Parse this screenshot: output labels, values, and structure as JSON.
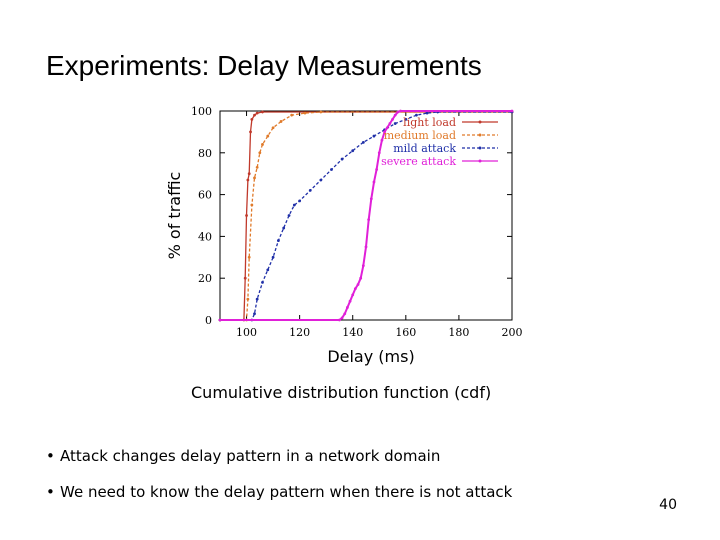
{
  "slide": {
    "title": "Experiments: Delay Measurements",
    "caption": "Cumulative distribution function (cdf)",
    "bullets": [
      "Attack changes delay pattern in a network domain",
      "We need to know the delay pattern when there is not attack"
    ],
    "page_number": "40"
  },
  "chart_data": {
    "type": "line",
    "title": "",
    "xlabel": "Delay (ms)",
    "ylabel": "% of traffic",
    "xlim": [
      90,
      200
    ],
    "ylim": [
      0,
      100
    ],
    "xticks": [
      "100",
      "120",
      "140",
      "160",
      "180",
      "200"
    ],
    "yticks": [
      "0",
      "20",
      "40",
      "60",
      "80",
      "100"
    ],
    "grid": false,
    "legend_position": "top-right",
    "series": [
      {
        "name": "light load",
        "color": "#c0392b",
        "style": "solid",
        "points": [
          [
            90,
            0
          ],
          [
            99,
            0
          ],
          [
            99.5,
            20
          ],
          [
            100,
            50
          ],
          [
            100.5,
            67
          ],
          [
            101,
            70
          ],
          [
            101.5,
            90
          ],
          [
            102,
            96
          ],
          [
            103,
            98
          ],
          [
            104,
            99
          ],
          [
            106,
            99.5
          ],
          [
            200,
            99.5
          ]
        ]
      },
      {
        "name": "medium load",
        "color": "#e07a2a",
        "style": "dashed",
        "points": [
          [
            90,
            0
          ],
          [
            100,
            0
          ],
          [
            100.5,
            10
          ],
          [
            101,
            30
          ],
          [
            102,
            55
          ],
          [
            103,
            68
          ],
          [
            104,
            73
          ],
          [
            105,
            80
          ],
          [
            106,
            84
          ],
          [
            108,
            88
          ],
          [
            110,
            92
          ],
          [
            113,
            95
          ],
          [
            117,
            98
          ],
          [
            122,
            99
          ],
          [
            128,
            99.5
          ],
          [
            200,
            99.5
          ]
        ]
      },
      {
        "name": "mild attack",
        "color": "#1f2fa8",
        "style": "dashed",
        "points": [
          [
            90,
            0
          ],
          [
            102,
            0
          ],
          [
            103,
            3
          ],
          [
            104,
            10
          ],
          [
            106,
            18
          ],
          [
            108,
            24
          ],
          [
            110,
            30
          ],
          [
            112,
            38
          ],
          [
            114,
            44
          ],
          [
            116,
            50
          ],
          [
            118,
            55
          ],
          [
            120,
            57
          ],
          [
            124,
            62
          ],
          [
            128,
            67
          ],
          [
            132,
            72
          ],
          [
            136,
            77
          ],
          [
            140,
            81
          ],
          [
            144,
            85
          ],
          [
            148,
            88
          ],
          [
            152,
            91
          ],
          [
            156,
            94
          ],
          [
            160,
            96
          ],
          [
            164,
            98
          ],
          [
            168,
            99
          ],
          [
            172,
            99.5
          ],
          [
            200,
            99.5
          ]
        ]
      },
      {
        "name": "severe attack",
        "color": "#e020d8",
        "style": "solid",
        "points": [
          [
            90,
            0
          ],
          [
            135,
            0
          ],
          [
            136,
            1
          ],
          [
            137,
            3
          ],
          [
            138,
            6
          ],
          [
            139,
            9
          ],
          [
            140,
            12
          ],
          [
            141,
            15
          ],
          [
            142,
            17
          ],
          [
            143,
            20
          ],
          [
            144,
            26
          ],
          [
            145,
            35
          ],
          [
            146,
            48
          ],
          [
            147,
            58
          ],
          [
            148,
            66
          ],
          [
            149,
            72
          ],
          [
            150,
            80
          ],
          [
            151,
            86
          ],
          [
            152,
            90
          ],
          [
            153,
            92
          ],
          [
            154,
            94
          ],
          [
            155,
            96
          ],
          [
            156,
            98
          ],
          [
            157,
            99.5
          ],
          [
            158,
            100
          ],
          [
            200,
            100
          ]
        ]
      }
    ]
  }
}
